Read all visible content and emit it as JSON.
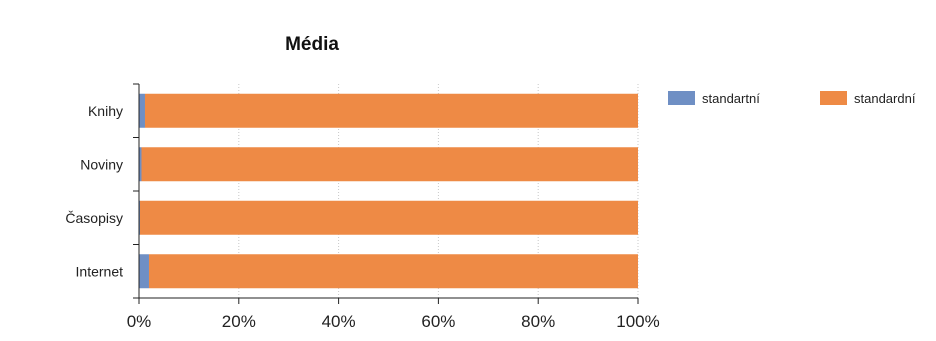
{
  "chart_data": {
    "type": "bar",
    "orientation": "horizontal",
    "stacked": "percent",
    "title": "Média",
    "xlabel": "",
    "ylabel": "",
    "categories": [
      "Knihy",
      "Noviny",
      "Časopisy",
      "Internet"
    ],
    "series": [
      {
        "name": "standartní",
        "color": "#6f8fc4",
        "values": [
          1.2,
          0.5,
          0.2,
          2.0
        ]
      },
      {
        "name": "standardní",
        "color": "#ee8a45",
        "values": [
          98.8,
          99.5,
          99.8,
          98.0
        ]
      }
    ],
    "xlim": [
      0,
      100
    ],
    "xticks": [
      "0%",
      "20%",
      "40%",
      "60%",
      "80%",
      "100%"
    ],
    "grid": "vertical-dotted",
    "legend": "top-right"
  }
}
